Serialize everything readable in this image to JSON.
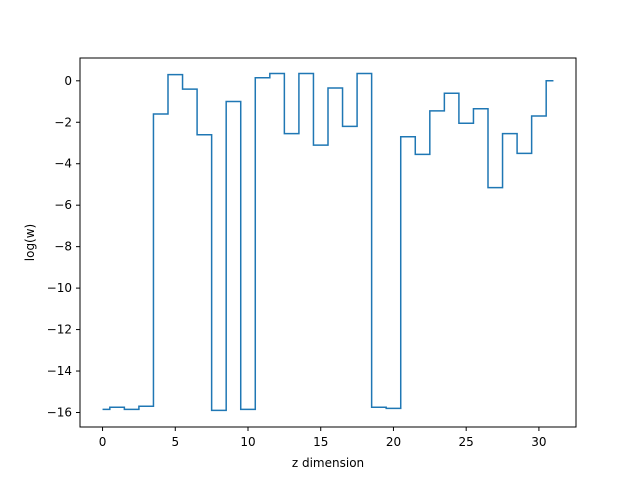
{
  "chart_data": {
    "type": "line",
    "drawstyle": "steps-mid",
    "title": "",
    "xlabel": "z dimension",
    "ylabel": "log(w)",
    "xlim": [
      -1.55,
      32.55
    ],
    "ylim": [
      -16.7,
      1.1
    ],
    "xticks": [
      0,
      5,
      10,
      15,
      20,
      25,
      30
    ],
    "yticks": [
      0,
      -2,
      -4,
      -6,
      -8,
      -10,
      -12,
      -14,
      -16
    ],
    "xtick_labels": [
      "0",
      "5",
      "10",
      "15",
      "20",
      "25",
      "30"
    ],
    "ytick_labels": [
      "0",
      "−2",
      "−4",
      "−6",
      "−8",
      "−10",
      "−12",
      "−14",
      "−16"
    ],
    "grid": false,
    "legend": "none",
    "color": "#1f77b4",
    "series": [
      {
        "x": [
          0,
          1,
          2,
          3,
          4,
          5,
          6,
          7,
          8,
          9,
          10,
          11,
          12,
          13,
          14,
          15,
          16,
          17,
          18,
          19,
          20,
          21,
          22,
          23,
          24,
          25,
          26,
          27,
          28,
          29,
          30,
          31
        ],
        "y": [
          -15.85,
          -15.75,
          -15.85,
          -15.7,
          -1.6,
          0.3,
          -0.4,
          -2.6,
          -15.9,
          -1.0,
          -15.85,
          0.15,
          0.35,
          -2.55,
          0.35,
          -3.1,
          -0.35,
          -2.2,
          0.35,
          -15.75,
          -15.8,
          -2.7,
          -3.55,
          -1.45,
          -0.6,
          -2.05,
          -1.35,
          -5.15,
          -2.55,
          -3.5,
          -1.7,
          0.0
        ]
      }
    ]
  }
}
